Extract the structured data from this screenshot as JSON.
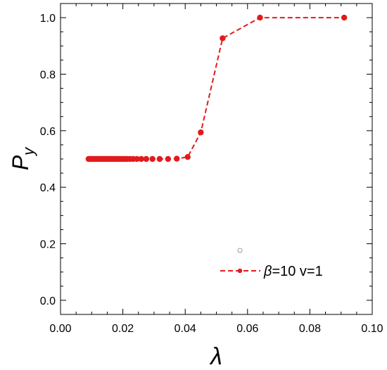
{
  "chart_data": {
    "type": "line",
    "xlabel": "λ",
    "ylabel_base": "P",
    "ylabel_sub": "y",
    "xlim": [
      0.0,
      0.1
    ],
    "ylim": [
      -0.05,
      1.05
    ],
    "x_ticks": [
      0.0,
      0.02,
      0.04,
      0.06,
      0.08,
      0.1
    ],
    "x_tick_labels": [
      "0.00",
      "0.02",
      "0.04",
      "0.06",
      "0.08",
      "0.10"
    ],
    "y_ticks": [
      0.0,
      0.2,
      0.4,
      0.6,
      0.8,
      1.0
    ],
    "y_tick_labels": [
      "0.0",
      "0.2",
      "0.4",
      "0.6",
      "0.8",
      "1.0"
    ],
    "grid": false,
    "legend_position": "bottom-right",
    "colors": {
      "series": "#e31a1c",
      "frame": "#000000"
    },
    "series": [
      {
        "name_greek": "β",
        "name_rest": "=10  v=1",
        "line_style": "dashed",
        "x": [
          0.009,
          0.0095,
          0.01,
          0.0105,
          0.011,
          0.0115,
          0.012,
          0.0125,
          0.013,
          0.0135,
          0.014,
          0.0145,
          0.015,
          0.0155,
          0.016,
          0.0165,
          0.017,
          0.0175,
          0.018,
          0.0186,
          0.0192,
          0.0199,
          0.0206,
          0.0214,
          0.0223,
          0.0233,
          0.0245,
          0.0259,
          0.0275,
          0.0295,
          0.0318,
          0.0345,
          0.0373,
          0.0408,
          0.045,
          0.052,
          0.064,
          0.091
        ],
        "y": [
          0.5,
          0.5,
          0.5,
          0.5,
          0.5,
          0.5,
          0.5,
          0.5,
          0.5,
          0.5,
          0.5,
          0.5,
          0.5,
          0.5,
          0.5,
          0.5,
          0.5,
          0.5,
          0.5,
          0.5,
          0.5,
          0.5,
          0.5,
          0.5,
          0.5,
          0.5,
          0.5,
          0.5,
          0.5,
          0.5,
          0.5,
          0.5,
          0.501,
          0.507,
          0.594,
          0.927,
          1.0,
          1.0
        ]
      }
    ]
  }
}
